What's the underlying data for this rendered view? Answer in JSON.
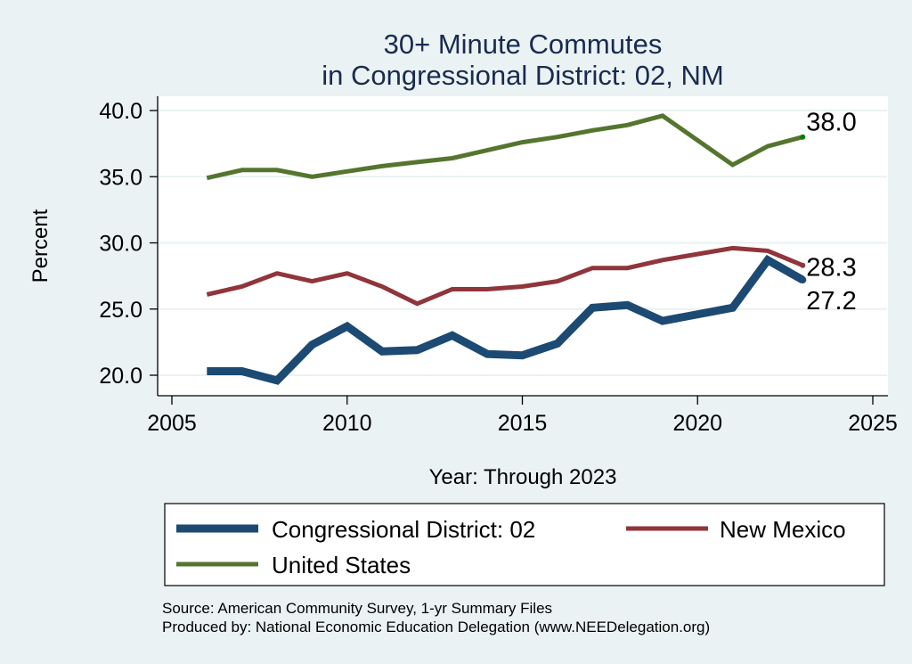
{
  "chart_data": {
    "type": "line",
    "title": [
      "30+ Minute Commutes",
      "in Congressional District:  02, NM"
    ],
    "xlabel": "Year: Through 2023",
    "ylabel": "Percent",
    "xlim": [
      2005,
      2025
    ],
    "ylim": [
      19.0,
      41.0
    ],
    "xticks": [
      2005,
      2010,
      2015,
      2020,
      2025
    ],
    "xtick_labels": [
      "2005",
      "2010",
      "2015",
      "2020",
      "2025"
    ],
    "yticks": [
      20,
      25,
      30,
      35,
      40
    ],
    "ytick_labels": [
      "20.0",
      "25.0",
      "30.0",
      "35.0",
      "40.0"
    ],
    "grid": "horizontal",
    "legend_position": "bottom",
    "x": [
      2006,
      2007,
      2008,
      2009,
      2010,
      2011,
      2012,
      2013,
      2014,
      2015,
      2016,
      2017,
      2018,
      2019,
      2021,
      2022,
      2023
    ],
    "series": [
      {
        "name": "Congressional District:  02",
        "color": "#1c4a72",
        "weight": "thick",
        "values": [
          20.3,
          20.3,
          19.6,
          22.3,
          23.7,
          21.8,
          21.9,
          23.0,
          21.6,
          21.5,
          22.4,
          25.1,
          25.3,
          24.1,
          25.1,
          28.7,
          27.2
        ],
        "end_label": "27.2",
        "end_marker_color": "#1c4a72"
      },
      {
        "name": "New Mexico",
        "color": "#90353b",
        "weight": "medium",
        "values": [
          26.1,
          26.7,
          27.7,
          27.1,
          27.7,
          26.7,
          25.4,
          26.5,
          26.5,
          26.7,
          27.1,
          28.1,
          28.1,
          28.7,
          29.6,
          29.4,
          28.3
        ],
        "end_label": "28.3",
        "end_marker_color": "#90353b"
      },
      {
        "name": "United States",
        "color": "#55752f",
        "weight": "medium",
        "values": [
          34.9,
          35.5,
          35.5,
          35.0,
          35.4,
          35.8,
          36.1,
          36.4,
          37.0,
          37.6,
          38.0,
          38.5,
          38.9,
          39.6,
          35.9,
          37.3,
          38.0
        ],
        "end_label": "38.0",
        "end_marker_color": "#008000"
      }
    ],
    "notes": [
      "Source: American Community Survey, 1-yr Summary Files",
      "Produced by: National Economic Education Delegation (www.NEEDelegation.org)"
    ]
  },
  "colors": {
    "background": "#eaf2f3",
    "plot_background": "#ffffff",
    "title": "#1a2b50",
    "gridline": "#eaf2f3"
  }
}
